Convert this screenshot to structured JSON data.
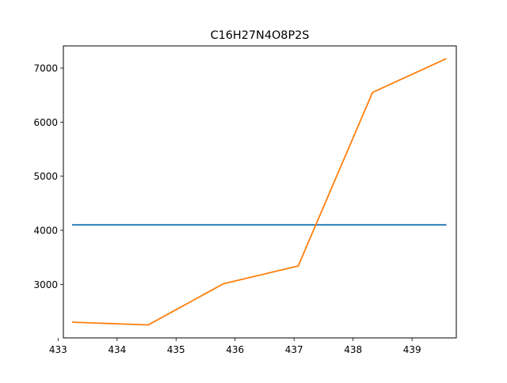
{
  "chart_data": {
    "type": "line",
    "title": "C16H27N4O8P2S",
    "xlabel": "",
    "ylabel": "",
    "xlim": [
      433.09,
      439.75
    ],
    "ylim": [
      2010,
      7410
    ],
    "x_ticks": [
      "433",
      "434",
      "435",
      "436",
      "437",
      "438",
      "439"
    ],
    "y_ticks": [
      "3000",
      "4000",
      "5000",
      "6000",
      "7000"
    ],
    "grid": false,
    "legend": "none",
    "series": [
      {
        "color": "#1f77b4",
        "x": [
          433.25,
          439.57
        ],
        "y": [
          4100,
          4100
        ]
      },
      {
        "color": "#ff7f0e",
        "x": [
          433.25,
          434.53,
          435.8,
          437.07,
          438.33,
          439.57
        ],
        "y": [
          2300,
          2250,
          3010,
          3340,
          6550,
          7170
        ]
      }
    ]
  }
}
